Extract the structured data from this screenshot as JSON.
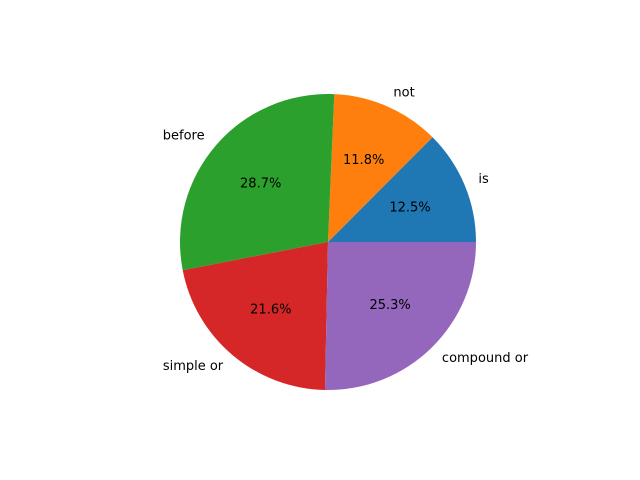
{
  "chart_data": {
    "type": "pie",
    "title": "",
    "slices": [
      {
        "label": "is",
        "value": 12.5,
        "pct_label": "12.5%",
        "color": "#1f77b4"
      },
      {
        "label": "not",
        "value": 11.8,
        "pct_label": "11.8%",
        "color": "#ff7f0e"
      },
      {
        "label": "before",
        "value": 28.7,
        "pct_label": "28.7%",
        "color": "#2ca02c"
      },
      {
        "label": "simple or",
        "value": 21.6,
        "pct_label": "21.6%",
        "color": "#d62728"
      },
      {
        "label": "compound or",
        "value": 25.3,
        "pct_label": "25.3%",
        "color": "#9467bd"
      }
    ],
    "start_angle_deg": 0,
    "direction": "counterclockwise",
    "legend": "none"
  }
}
